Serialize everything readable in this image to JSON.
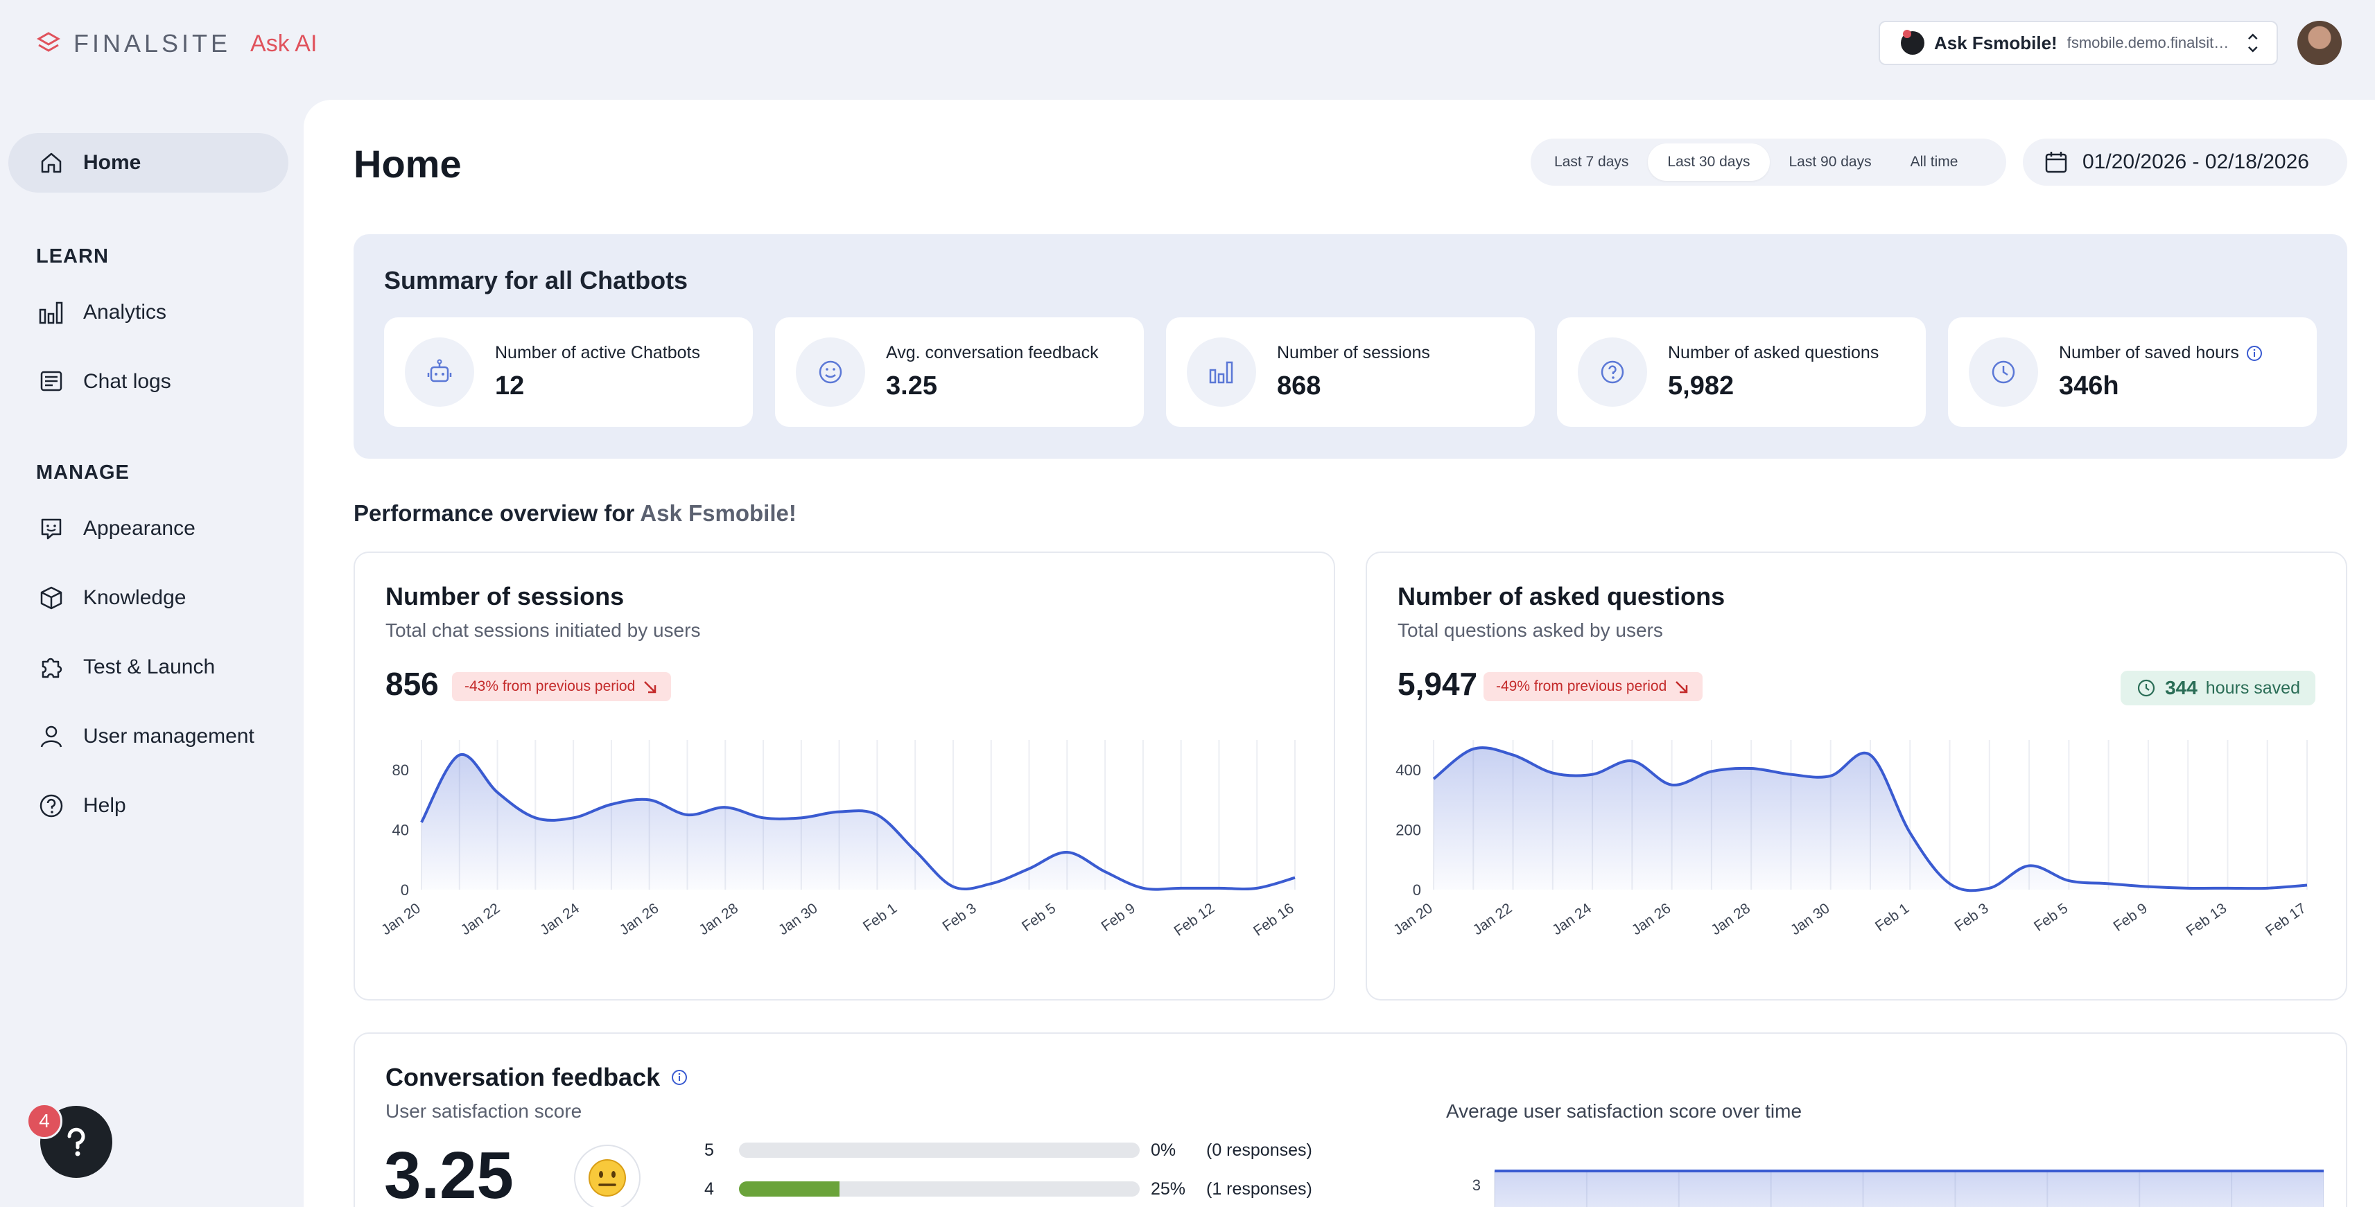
{
  "brand": {
    "name": "FINALSITE",
    "product": "Ask AI"
  },
  "bot_switcher": {
    "name": "Ask Fsmobile!",
    "domain": "fsmobile.demo.finalsite...."
  },
  "sidebar": {
    "home": "Home",
    "learn_title": "LEARN",
    "learn": [
      {
        "label": "Analytics",
        "icon": "bar-chart-icon"
      },
      {
        "label": "Chat logs",
        "icon": "chat-log-icon"
      }
    ],
    "manage_title": "MANAGE",
    "manage": [
      {
        "label": "Appearance",
        "icon": "appearance-icon"
      },
      {
        "label": "Knowledge",
        "icon": "cube-icon"
      },
      {
        "label": "Test & Launch",
        "icon": "puzzle-icon"
      },
      {
        "label": "User management",
        "icon": "user-icon"
      },
      {
        "label": "Help",
        "icon": "help-icon"
      }
    ]
  },
  "help_badge": "4",
  "page": {
    "title": "Home",
    "ranges": [
      "Last 7 days",
      "Last 30 days",
      "Last 90 days",
      "All time"
    ],
    "active_range": "Last 30 days",
    "date_range": "01/20/2026 - 02/18/2026"
  },
  "summary": {
    "title": "Summary for all Chatbots",
    "stats": [
      {
        "label": "Number of active Chatbots",
        "value": "12",
        "icon": "bot-icon"
      },
      {
        "label": "Avg. conversation feedback",
        "value": "3.25",
        "icon": "smile-icon"
      },
      {
        "label": "Number of sessions",
        "value": "868",
        "icon": "bar-chart-icon"
      },
      {
        "label": "Number of asked questions",
        "value": "5,982",
        "icon": "question-icon"
      },
      {
        "label": "Number of saved hours",
        "value": "346h",
        "icon": "clock-icon"
      }
    ]
  },
  "performance": {
    "title_prefix": "Performance overview for",
    "bot": "Ask Fsmobile!"
  },
  "sessions_card": {
    "title": "Number of sessions",
    "subtitle": "Total chat sessions initiated by users",
    "value": "856",
    "delta": "-43% from previous period"
  },
  "questions_card": {
    "title": "Number of asked questions",
    "subtitle": "Total questions asked by users",
    "value": "5,947",
    "delta": "-49% from previous period",
    "hours_value": "344",
    "hours_label": "hours saved"
  },
  "feedback": {
    "title": "Conversation feedback",
    "subtitle": "User satisfaction score",
    "score": "3.25",
    "right_title": "Average user satisfaction score over time",
    "rows": [
      {
        "label": "5",
        "pct": "0%",
        "fraction": 0,
        "resp": "(0 responses)"
      },
      {
        "label": "4",
        "pct": "25%",
        "fraction": 0.25,
        "resp": "(1 responses)"
      }
    ],
    "line_ytick": "3"
  },
  "chart_data": [
    {
      "type": "area",
      "ylim": [
        0,
        100
      ],
      "yticks": [
        0,
        40,
        80
      ],
      "x": [
        "Jan 20",
        "Jan 21",
        "Jan 22",
        "Jan 23",
        "Jan 24",
        "Jan 25",
        "Jan 26",
        "Jan 27",
        "Jan 28",
        "Jan 29",
        "Jan 30",
        "Jan 31",
        "Feb 1",
        "Feb 2",
        "Feb 3",
        "Feb 4",
        "Feb 5",
        "Feb 6",
        "Feb 9",
        "Feb 10",
        "Feb 12",
        "Feb 13",
        "Feb 16",
        "Feb 17"
      ],
      "xtick_labels": [
        "Jan 20",
        "Jan 22",
        "Jan 24",
        "Jan 26",
        "Jan 28",
        "Jan 30",
        "Feb 1",
        "Feb 3",
        "Feb 5",
        "Feb 9",
        "Feb 12",
        "Feb 16"
      ],
      "values": [
        45,
        90,
        65,
        48,
        48,
        57,
        60,
        50,
        55,
        48,
        48,
        52,
        50,
        26,
        2,
        4,
        14,
        25,
        12,
        1,
        1,
        1,
        1,
        8
      ],
      "color": "#3a5bd1"
    },
    {
      "type": "area",
      "ylim": [
        0,
        500
      ],
      "yticks": [
        0,
        200,
        400
      ],
      "x": [
        "Jan 20",
        "Jan 21",
        "Jan 22",
        "Jan 23",
        "Jan 24",
        "Jan 25",
        "Jan 26",
        "Jan 27",
        "Jan 28",
        "Jan 29",
        "Jan 30",
        "Jan 31",
        "Feb 1",
        "Feb 2",
        "Feb 3",
        "Feb 4",
        "Feb 5",
        "Feb 6",
        "Feb 9",
        "Feb 10",
        "Feb 13",
        "Feb 14",
        "Feb 17"
      ],
      "xtick_labels": [
        "Jan 20",
        "Jan 22",
        "Jan 24",
        "Jan 26",
        "Jan 28",
        "Jan 30",
        "Feb 1",
        "Feb 3",
        "Feb 5",
        "Feb 9",
        "Feb 13",
        "Feb 17"
      ],
      "values": [
        370,
        470,
        450,
        390,
        385,
        430,
        350,
        395,
        405,
        385,
        380,
        450,
        190,
        20,
        5,
        80,
        30,
        20,
        10,
        5,
        5,
        5,
        15
      ],
      "color": "#3a5bd1"
    },
    {
      "type": "line",
      "yticks": [
        3
      ],
      "values": [
        3,
        3,
        3,
        3,
        3,
        3,
        3,
        3,
        3,
        3
      ],
      "color": "#3a5bd1"
    }
  ],
  "colors": {
    "accent": "#3a5bd1",
    "brand_red": "#e0525c",
    "delta_red": "#c42b2b",
    "positive_green": "#2a6d56"
  }
}
